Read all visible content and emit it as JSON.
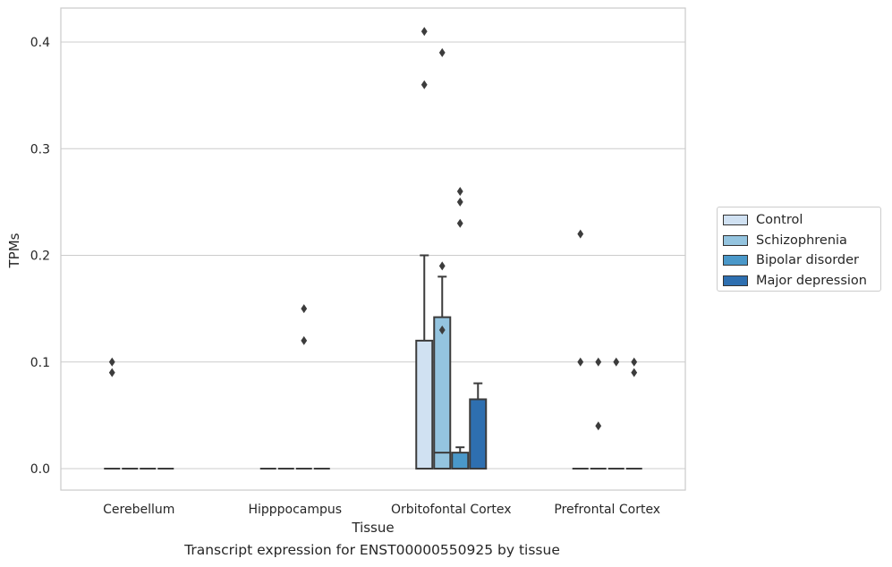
{
  "chart_data": {
    "type": "box",
    "title": "",
    "xlabel": "Tissue",
    "ylabel": "TPMs",
    "caption": "Transcript expression for ENST00000550925 by tissue",
    "ylim": [
      -0.02,
      0.43
    ],
    "yticks": [
      0.0,
      0.1,
      0.2,
      0.3,
      0.4
    ],
    "ytick_labels": [
      "0.0",
      "0.1",
      "0.2",
      "0.3",
      "0.4"
    ],
    "grid": true,
    "legend_position": "right",
    "categories": [
      "Cerebellum",
      "Hipppocampus",
      "Orbitofontal Cortex",
      "Prefrontal Cortex"
    ],
    "series": [
      {
        "name": "Control",
        "color": "#d0e1f2",
        "boxes": [
          {
            "min": 0,
            "q1": 0,
            "median": 0,
            "q3": 0,
            "max": 0,
            "outliers": [
              0.1,
              0.09
            ]
          },
          {
            "min": 0,
            "q1": 0,
            "median": 0,
            "q3": 0,
            "max": 0,
            "outliers": []
          },
          {
            "min": 0,
            "q1": 0,
            "median": 0,
            "q3": 0.12,
            "max": 0.2,
            "outliers": [
              0.41,
              0.36
            ]
          },
          {
            "min": 0,
            "q1": 0,
            "median": 0,
            "q3": 0,
            "max": 0,
            "outliers": [
              0.22,
              0.1
            ]
          }
        ]
      },
      {
        "name": "Schizophrenia",
        "color": "#94c4df",
        "boxes": [
          {
            "min": 0,
            "q1": 0,
            "median": 0,
            "q3": 0,
            "max": 0,
            "outliers": []
          },
          {
            "min": 0,
            "q1": 0,
            "median": 0,
            "q3": 0,
            "max": 0,
            "outliers": []
          },
          {
            "min": 0,
            "q1": 0,
            "median": 0.015,
            "q3": 0.142,
            "max": 0.18,
            "outliers": [
              0.39,
              0.19,
              0.13
            ]
          },
          {
            "min": 0,
            "q1": 0,
            "median": 0,
            "q3": 0,
            "max": 0,
            "outliers": [
              0.1,
              0.04
            ]
          }
        ]
      },
      {
        "name": "Bipolar disorder",
        "color": "#4a98c9",
        "boxes": [
          {
            "min": 0,
            "q1": 0,
            "median": 0,
            "q3": 0,
            "max": 0,
            "outliers": []
          },
          {
            "min": 0,
            "q1": 0,
            "median": 0,
            "q3": 0,
            "max": 0,
            "outliers": [
              0.15,
              0.12
            ]
          },
          {
            "min": 0,
            "q1": 0,
            "median": 0,
            "q3": 0.015,
            "max": 0.02,
            "outliers": [
              0.26,
              0.25,
              0.23
            ]
          },
          {
            "min": 0,
            "q1": 0,
            "median": 0,
            "q3": 0,
            "max": 0,
            "outliers": [
              0.1
            ]
          }
        ]
      },
      {
        "name": "Major depression",
        "color": "#2e6fb0",
        "boxes": [
          {
            "min": 0,
            "q1": 0,
            "median": 0,
            "q3": 0,
            "max": 0,
            "outliers": []
          },
          {
            "min": 0,
            "q1": 0,
            "median": 0,
            "q3": 0,
            "max": 0,
            "outliers": []
          },
          {
            "min": 0,
            "q1": 0,
            "median": 0,
            "q3": 0.065,
            "max": 0.08,
            "outliers": []
          },
          {
            "min": 0,
            "q1": 0,
            "median": 0,
            "q3": 0,
            "max": 0,
            "outliers": [
              0.1,
              0.09
            ]
          }
        ]
      }
    ]
  }
}
